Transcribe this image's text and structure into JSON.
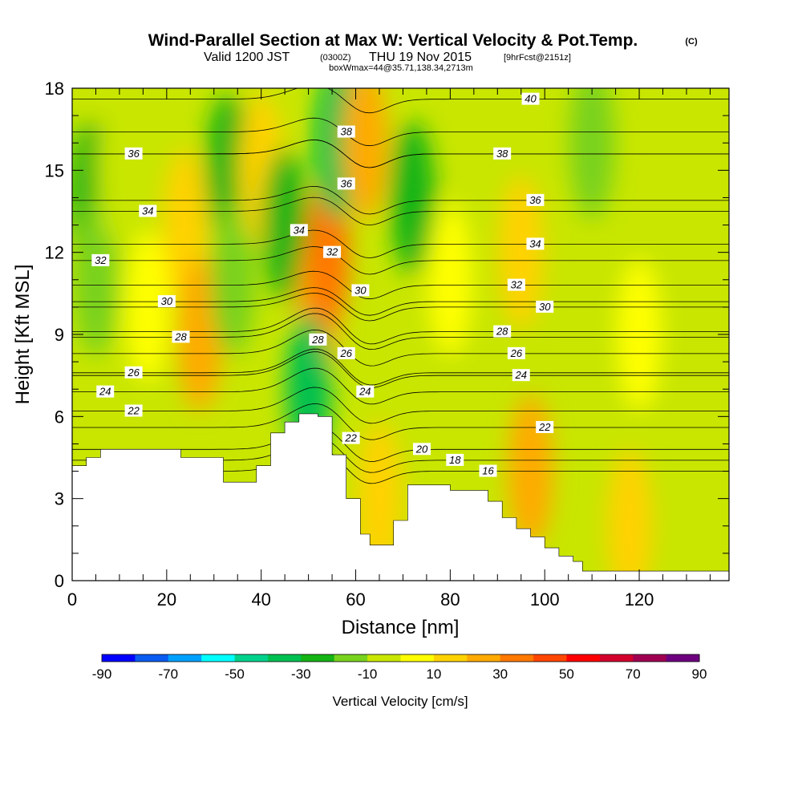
{
  "header": {
    "title": "Wind-Parallel Section at Max W: Vertical Velocity & Pot.Temp.",
    "copyright": "(C)",
    "valid": "Valid 1200 JST",
    "zulu": "(0300Z)",
    "date": "THU 19 Nov 2015",
    "forecast": "[9hrFcst@2151z]",
    "box": "boxWmax=44@35.71,138.34,2713m"
  },
  "chart_data": {
    "type": "heatmap",
    "xlabel": "Distance [nm]",
    "ylabel": "Height [Kft MSL]",
    "xlim": [
      0,
      139
    ],
    "ylim": [
      0,
      18
    ],
    "x_ticks": [
      "0",
      "20",
      "40",
      "60",
      "80",
      "100",
      "120"
    ],
    "y_ticks": [
      "0",
      "3",
      "6",
      "9",
      "12",
      "15",
      "18"
    ],
    "colorbar": {
      "label": "Vertical Velocity [cm/s]",
      "min": -90,
      "max": 90,
      "tick_labels": [
        "-90",
        "-70",
        "-50",
        "-30",
        "-10",
        "10",
        "30",
        "50",
        "70",
        "90"
      ],
      "colors": [
        "#0000ff",
        "#0a5cf0",
        "#00a0ff",
        "#00ffff",
        "#00d28c",
        "#00c050",
        "#14b414",
        "#78d21e",
        "#c8e600",
        "#ffff00",
        "#ffd200",
        "#ffaa00",
        "#ff7800",
        "#ff4600",
        "#ff0000",
        "#d2002d",
        "#a00050",
        "#6e0080"
      ]
    },
    "terrain_kft": [
      [
        0,
        4.2
      ],
      [
        3,
        4.2
      ],
      [
        3,
        4.5
      ],
      [
        6,
        4.5
      ],
      [
        6,
        4.8
      ],
      [
        23,
        4.8
      ],
      [
        23,
        4.5
      ],
      [
        32,
        4.5
      ],
      [
        32,
        3.6
      ],
      [
        39,
        3.6
      ],
      [
        39,
        4.2
      ],
      [
        42,
        4.2
      ],
      [
        42,
        5.4
      ],
      [
        45,
        5.4
      ],
      [
        45,
        5.8
      ],
      [
        48,
        5.8
      ],
      [
        48,
        6.1
      ],
      [
        52,
        6.1
      ],
      [
        52,
        6.0
      ],
      [
        55,
        6.0
      ],
      [
        55,
        4.6
      ],
      [
        58,
        4.6
      ],
      [
        58,
        3.0
      ],
      [
        61,
        3.0
      ],
      [
        61,
        1.7
      ],
      [
        63,
        1.7
      ],
      [
        63,
        1.3
      ],
      [
        68,
        1.3
      ],
      [
        68,
        2.2
      ],
      [
        71,
        2.2
      ],
      [
        71,
        3.5
      ],
      [
        80,
        3.5
      ],
      [
        80,
        3.3
      ],
      [
        88,
        3.3
      ],
      [
        88,
        2.9
      ],
      [
        91,
        2.9
      ],
      [
        91,
        2.3
      ],
      [
        94,
        2.3
      ],
      [
        94,
        1.9
      ],
      [
        97,
        1.9
      ],
      [
        97,
        1.6
      ],
      [
        100,
        1.6
      ],
      [
        100,
        1.2
      ],
      [
        103,
        1.2
      ],
      [
        103,
        0.9
      ],
      [
        106,
        0.9
      ],
      [
        106,
        0.7
      ],
      [
        108,
        0.7
      ],
      [
        108,
        0.35
      ],
      [
        139,
        0.35
      ]
    ],
    "w_cells": [
      {
        "x": 4,
        "y": 14,
        "w": -25
      },
      {
        "x": 5,
        "y": 11,
        "w": -20
      },
      {
        "x": 10,
        "y": 15,
        "w": -10
      },
      {
        "x": 16,
        "y": 10,
        "w": 8
      },
      {
        "x": 24,
        "y": 13,
        "w": 18
      },
      {
        "x": 27,
        "y": 9,
        "w": 22
      },
      {
        "x": 33,
        "y": 15,
        "w": -28
      },
      {
        "x": 34,
        "y": 11,
        "w": -18
      },
      {
        "x": 40,
        "y": 15,
        "w": 12
      },
      {
        "x": 45,
        "y": 13,
        "w": -22
      },
      {
        "x": 52,
        "y": 10,
        "w": 28
      },
      {
        "x": 54,
        "y": 12,
        "w": 32
      },
      {
        "x": 56,
        "y": 16,
        "w": -32
      },
      {
        "x": 50,
        "y": 7,
        "w": -35
      },
      {
        "x": 62,
        "y": 16,
        "w": 25
      },
      {
        "x": 72,
        "y": 14,
        "w": -25
      },
      {
        "x": 80,
        "y": 11,
        "w": 6
      },
      {
        "x": 95,
        "y": 12,
        "w": 10
      },
      {
        "x": 110,
        "y": 16,
        "w": -20
      },
      {
        "x": 120,
        "y": 9,
        "w": 8
      },
      {
        "x": 97,
        "y": 4,
        "w": 20
      },
      {
        "x": 118,
        "y": 2,
        "w": 10
      },
      {
        "x": 65,
        "y": 3,
        "w": 12
      }
    ],
    "isentropes": [
      {
        "label": "16",
        "y": 4.0,
        "x": 88
      },
      {
        "label": "18",
        "y": 4.4,
        "x": 81
      },
      {
        "label": "20",
        "y": 4.8,
        "x": 74
      },
      {
        "label": "22",
        "y": 6.2,
        "x": 13
      },
      {
        "label": "22",
        "y": 5.6,
        "x": 100
      },
      {
        "label": "24",
        "y": 6.9,
        "x": 7
      },
      {
        "label": "24",
        "y": 7.5,
        "x": 95
      },
      {
        "label": "26",
        "y": 7.6,
        "x": 13
      },
      {
        "label": "26",
        "y": 8.3,
        "x": 94
      },
      {
        "label": "28",
        "y": 8.9,
        "x": 23
      },
      {
        "label": "28",
        "y": 9.1,
        "x": 91
      },
      {
        "label": "30",
        "y": 10.2,
        "x": 20
      },
      {
        "label": "30",
        "y": 10.0,
        "x": 100
      },
      {
        "label": "32",
        "y": 11.7,
        "x": 6
      },
      {
        "label": "32",
        "y": 10.8,
        "x": 94
      },
      {
        "label": "34",
        "y": 13.5,
        "x": 16
      },
      {
        "label": "34",
        "y": 12.3,
        "x": 98
      },
      {
        "label": "36",
        "y": 15.6,
        "x": 13
      },
      {
        "label": "36",
        "y": 13.9,
        "x": 98
      },
      {
        "label": "38",
        "y": 16.4,
        "x": 58
      },
      {
        "label": "38",
        "y": 15.6,
        "x": 91
      },
      {
        "label": "40",
        "y": 17.6,
        "x": 97
      }
    ],
    "contour_labels_inline": [
      {
        "label": "36",
        "x": 58,
        "y": 14.5
      },
      {
        "label": "34",
        "x": 48,
        "y": 12.8
      },
      {
        "label": "32",
        "x": 55,
        "y": 12.0
      },
      {
        "label": "30",
        "x": 61,
        "y": 10.6
      },
      {
        "label": "28",
        "x": 52,
        "y": 8.8
      },
      {
        "label": "26",
        "x": 58,
        "y": 8.3
      },
      {
        "label": "24",
        "x": 62,
        "y": 6.9
      },
      {
        "label": "22",
        "x": 59,
        "y": 5.2
      }
    ]
  }
}
